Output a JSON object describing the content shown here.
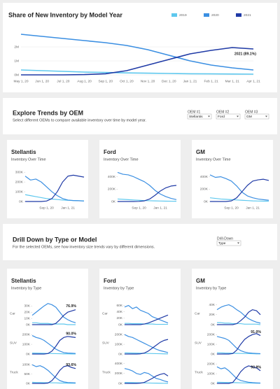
{
  "chart_data": [
    {
      "type": "line",
      "title": "Share of New Inventory by Model Year",
      "categories": [
        "May 1, 20",
        "Jun 1, 20",
        "Jul 1, 20",
        "Aug 1, 20",
        "Sep 1, 20",
        "Oct 1, 20",
        "Nov 1, 20",
        "Dec 1, 20",
        "Jan 1, 21",
        "Feb 1, 21",
        "Mar 1, 21",
        "Apr 1, 21"
      ],
      "series": [
        {
          "name": "2019",
          "color": "#5ec8ee",
          "values": [
            0.35,
            0.3,
            0.25,
            0.2,
            0.17,
            0.14,
            0.12,
            0.1,
            0.08,
            0.07,
            0.06,
            0.05
          ]
        },
        {
          "name": "2020",
          "color": "#3b8fe2",
          "values": [
            2.9,
            2.75,
            2.6,
            2.45,
            2.3,
            2.1,
            1.8,
            1.4,
            1.0,
            0.7,
            0.5,
            0.35
          ]
        },
        {
          "name": "2021",
          "color": "#1f3aa6",
          "values": [
            0,
            0,
            0,
            0.02,
            0.08,
            0.3,
            0.7,
            1.1,
            1.5,
            1.75,
            1.95,
            1.85
          ]
        }
      ],
      "ylim": [
        0,
        3.1
      ],
      "yticks": [
        {
          "value": 0,
          "label": "0M"
        },
        {
          "value": 1,
          "label": "1M"
        },
        {
          "value": 2,
          "label": "2M"
        }
      ],
      "annotation": "2021 (89.1%)",
      "legend": "top-right",
      "grid": true
    },
    {
      "type": "line",
      "title": "Stellantis",
      "subtitle": "Inventory Over Time",
      "categories": [
        null,
        null,
        null,
        null,
        "Sep 1, 20",
        null,
        null,
        null,
        "Jan 1, 21",
        null,
        null,
        null
      ],
      "series": [
        {
          "color": "#5ec8ee",
          "values": [
            70,
            60,
            50,
            40,
            30,
            25,
            20,
            15,
            12,
            10,
            8,
            6
          ]
        },
        {
          "color": "#3b8fe2",
          "values": [
            260,
            220,
            230,
            200,
            150,
            100,
            60,
            30,
            15,
            10,
            8,
            5
          ]
        },
        {
          "color": "#1f3aa6",
          "values": [
            0,
            0,
            0,
            0,
            5,
            30,
            100,
            200,
            260,
            270,
            260,
            250
          ]
        }
      ],
      "ylim": [
        0,
        330
      ],
      "yticks": [
        {
          "value": 0,
          "label": "0K"
        },
        {
          "value": 100,
          "label": "100K"
        },
        {
          "value": 200,
          "label": "200K"
        },
        {
          "value": 300,
          "label": "300K"
        }
      ]
    },
    {
      "type": "line",
      "title": "Ford",
      "subtitle": "Inventory Over Time",
      "categories": [
        null,
        null,
        null,
        null,
        "Sep 1, 20",
        null,
        null,
        null,
        "Jan 1, 21",
        null,
        null,
        null
      ],
      "series": [
        {
          "color": "#5ec8ee",
          "values": [
            40,
            35,
            30,
            25,
            20,
            15,
            12,
            10,
            8,
            6,
            5,
            4
          ]
        },
        {
          "color": "#3b8fe2",
          "values": [
            470,
            440,
            430,
            400,
            360,
            320,
            260,
            180,
            120,
            80,
            50,
            30
          ]
        },
        {
          "color": "#1f3aa6",
          "values": [
            0,
            0,
            0,
            0,
            2,
            10,
            40,
            100,
            170,
            220,
            250,
            260
          ]
        }
      ],
      "ylim": [
        0,
        520
      ],
      "yticks": [
        {
          "value": 0,
          "label": "0K"
        },
        {
          "value": 200,
          "label": "200K"
        },
        {
          "value": 400,
          "label": "400K"
        }
      ]
    },
    {
      "type": "line",
      "title": "GM",
      "subtitle": "Inventory Over Time",
      "categories": [
        null,
        null,
        null,
        null,
        "Sep 1, 20",
        null,
        null,
        null,
        "Jan 1, 21",
        null,
        null,
        null
      ],
      "series": [
        {
          "color": "#5ec8ee",
          "values": [
            60,
            50,
            40,
            35,
            30,
            25,
            20,
            15,
            10,
            8,
            6,
            5
          ]
        },
        {
          "color": "#3b8fe2",
          "values": [
            430,
            390,
            400,
            370,
            330,
            250,
            150,
            90,
            60,
            40,
            30,
            20
          ]
        },
        {
          "color": "#1f3aa6",
          "values": [
            0,
            0,
            0,
            0,
            10,
            60,
            160,
            260,
            330,
            350,
            360,
            340
          ]
        }
      ],
      "ylim": [
        0,
        520
      ],
      "yticks": [
        {
          "value": 0,
          "label": "0K"
        },
        {
          "value": 200,
          "label": "200K"
        },
        {
          "value": 400,
          "label": "400K"
        }
      ]
    },
    {
      "type": "line",
      "title": "Car",
      "series": [
        {
          "color": "#5ec8ee",
          "values": [
            3,
            3,
            2,
            2,
            2,
            1,
            1,
            1,
            1,
            0,
            0,
            0
          ]
        },
        {
          "color": "#3b8fe2",
          "values": [
            15,
            20,
            25,
            30,
            34,
            32,
            28,
            20,
            12,
            8,
            5,
            3
          ]
        },
        {
          "color": "#1f3aa6",
          "values": [
            0,
            0,
            0,
            0,
            0,
            0,
            2,
            8,
            15,
            20,
            22,
            24
          ]
        }
      ],
      "ylim": [
        0,
        36
      ],
      "yticks": [
        {
          "value": 0,
          "label": "0K"
        },
        {
          "value": 10,
          "label": "10K"
        },
        {
          "value": 20,
          "label": "20K"
        },
        {
          "value": 30,
          "label": "30K"
        }
      ],
      "annotation": "76.9%"
    },
    {
      "type": "line",
      "title": "SUV",
      "series": [
        {
          "color": "#5ec8ee",
          "values": [
            10,
            9,
            8,
            7,
            6,
            5,
            4,
            3,
            2,
            2,
            1,
            1
          ]
        },
        {
          "color": "#3b8fe2",
          "values": [
            190,
            170,
            160,
            140,
            110,
            80,
            50,
            30,
            15,
            10,
            8,
            6
          ]
        },
        {
          "color": "#1f3aa6",
          "values": [
            0,
            0,
            0,
            0,
            5,
            30,
            80,
            140,
            170,
            180,
            175,
            170
          ]
        }
      ],
      "ylim": [
        0,
        230
      ],
      "yticks": [
        {
          "value": 0,
          "label": "0K"
        },
        {
          "value": 100,
          "label": "100K"
        },
        {
          "value": 200,
          "label": "200K"
        }
      ],
      "annotation": "90.0%"
    },
    {
      "type": "line",
      "title": "Truck",
      "series": [
        {
          "color": "#5ec8ee",
          "values": [
            6,
            5,
            5,
            4,
            4,
            3,
            3,
            2,
            2,
            1,
            1,
            1
          ]
        },
        {
          "color": "#3b8fe2",
          "values": [
            100,
            90,
            95,
            85,
            70,
            50,
            30,
            15,
            8,
            5,
            4,
            3
          ]
        },
        {
          "color": "#1f3aa6",
          "values": [
            0,
            0,
            0,
            0,
            2,
            15,
            40,
            70,
            90,
            95,
            85,
            80
          ]
        }
      ],
      "ylim": [
        0,
        120
      ],
      "yticks": [
        {
          "value": 0,
          "label": "0K"
        },
        {
          "value": 50,
          "label": "50K"
        },
        {
          "value": 100,
          "label": "100K"
        }
      ],
      "annotation": "93.6%"
    },
    {
      "type": "line",
      "title": "Car",
      "series": [
        {
          "color": "#5ec8ee",
          "values": [
            4,
            4,
            3,
            3,
            3,
            2,
            2,
            2,
            1,
            1,
            1,
            1
          ]
        },
        {
          "color": "#3b8fe2",
          "values": [
            55,
            60,
            50,
            55,
            45,
            40,
            35,
            25,
            20,
            15,
            10,
            5
          ]
        },
        {
          "color": "#1f3aa6",
          "values": [
            0,
            0,
            0,
            0,
            0,
            2,
            5,
            10,
            15,
            20,
            25,
            30
          ]
        }
      ],
      "ylim": [
        0,
        70
      ],
      "yticks": [
        {
          "value": 0,
          "label": "0K"
        },
        {
          "value": 20,
          "label": "20K"
        },
        {
          "value": 40,
          "label": "40K"
        },
        {
          "value": 60,
          "label": "60K"
        }
      ]
    },
    {
      "type": "line",
      "title": "SUV",
      "series": [
        {
          "color": "#5ec8ee",
          "values": [
            12,
            11,
            10,
            9,
            8,
            7,
            6,
            5,
            4,
            3,
            2,
            2
          ]
        },
        {
          "color": "#3b8fe2",
          "values": [
            200,
            180,
            170,
            150,
            130,
            110,
            90,
            70,
            50,
            35,
            25,
            15
          ]
        },
        {
          "color": "#1f3aa6",
          "values": [
            0,
            0,
            0,
            0,
            2,
            10,
            30,
            60,
            90,
            120,
            140,
            150
          ]
        }
      ],
      "ylim": [
        0,
        230
      ],
      "yticks": [
        {
          "value": 0,
          "label": "0K"
        },
        {
          "value": 100,
          "label": "100K"
        },
        {
          "value": 200,
          "label": "200K"
        }
      ]
    },
    {
      "type": "line",
      "title": "Truck",
      "series": [
        {
          "color": "#5ec8ee",
          "values": [
            20,
            18,
            16,
            14,
            12,
            10,
            8,
            6,
            5,
            4,
            3,
            2
          ]
        },
        {
          "color": "#3b8fe2",
          "values": [
            300,
            280,
            250,
            200,
            180,
            220,
            200,
            150,
            100,
            80,
            50,
            30
          ]
        },
        {
          "color": "#1f3aa6",
          "values": [
            0,
            0,
            0,
            0,
            5,
            20,
            60,
            100,
            150,
            180,
            200,
            150
          ]
        }
      ],
      "ylim": [
        0,
        450
      ],
      "yticks": [
        {
          "value": 0,
          "label": "0K"
        },
        {
          "value": 200,
          "label": "200K"
        },
        {
          "value": 400,
          "label": "400K"
        }
      ]
    },
    {
      "type": "line",
      "title": "Car",
      "series": [
        {
          "color": "#5ec8ee",
          "values": [
            4,
            4,
            3,
            3,
            2,
            2,
            2,
            1,
            1,
            1,
            1,
            0
          ]
        },
        {
          "color": "#3b8fe2",
          "values": [
            30,
            35,
            38,
            40,
            36,
            30,
            25,
            18,
            12,
            8,
            5,
            3
          ]
        },
        {
          "color": "#1f3aa6",
          "values": [
            0,
            0,
            0,
            0,
            0,
            2,
            8,
            15,
            25,
            30,
            28,
            20
          ]
        }
      ],
      "ylim": [
        0,
        45
      ],
      "yticks": [
        {
          "value": 0,
          "label": "0K"
        },
        {
          "value": 20,
          "label": "20K"
        },
        {
          "value": 40,
          "label": "40K"
        }
      ]
    },
    {
      "type": "line",
      "title": "SUV",
      "series": [
        {
          "color": "#5ec8ee",
          "values": [
            14,
            12,
            10,
            9,
            8,
            7,
            6,
            5,
            4,
            3,
            2,
            2
          ]
        },
        {
          "color": "#3b8fe2",
          "values": [
            180,
            170,
            160,
            140,
            100,
            60,
            35,
            20,
            12,
            8,
            6,
            4
          ]
        },
        {
          "color": "#1f3aa6",
          "values": [
            0,
            0,
            0,
            0,
            5,
            40,
            100,
            150,
            180,
            200,
            210,
            190
          ]
        }
      ],
      "ylim": [
        0,
        230
      ],
      "yticks": [
        {
          "value": 0,
          "label": "0K"
        },
        {
          "value": 100,
          "label": "100K"
        },
        {
          "value": 200,
          "label": "200K"
        }
      ],
      "annotation": "91.0%"
    },
    {
      "type": "line",
      "title": "Truck",
      "series": [
        {
          "color": "#5ec8ee",
          "values": [
            12,
            11,
            10,
            9,
            8,
            7,
            6,
            5,
            4,
            3,
            2,
            2
          ]
        },
        {
          "color": "#3b8fe2",
          "values": [
            170,
            150,
            160,
            130,
            90,
            50,
            30,
            20,
            12,
            8,
            6,
            4
          ]
        },
        {
          "color": "#1f3aa6",
          "values": [
            0,
            0,
            0,
            0,
            10,
            60,
            120,
            160,
            180,
            170,
            160,
            130
          ]
        }
      ],
      "ylim": [
        0,
        230
      ],
      "yticks": [
        {
          "value": 0,
          "label": "0K"
        },
        {
          "value": 100,
          "label": "100K"
        },
        {
          "value": 200,
          "label": "200K"
        }
      ],
      "annotation": "93.9%"
    }
  ],
  "oem_section": {
    "title": "Explore Trends by OEM",
    "subtitle": "Select different OEMs to compare available inventory over time by model year.",
    "selectors": [
      {
        "label": "OEM #1",
        "value": "Stellantis"
      },
      {
        "label": "OEM #2",
        "value": "Ford"
      },
      {
        "label": "OEM #3",
        "value": "GM"
      }
    ]
  },
  "drill_section": {
    "title": "Drill Down by Type or Model",
    "subtitle": "For the selected OEMs, see how inventory size trends vary by different dimensions.",
    "selector": {
      "label": "Drill-Down",
      "value": "Type"
    },
    "panels": [
      {
        "title": "Stellantis",
        "subtitle": "Inventory by Type"
      },
      {
        "title": "Ford",
        "subtitle": "Inventory by Type"
      },
      {
        "title": "GM",
        "subtitle": "Inventory by Type"
      }
    ]
  }
}
